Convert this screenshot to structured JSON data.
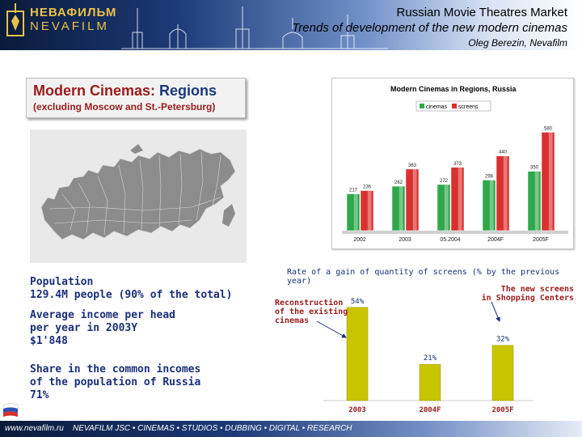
{
  "header": {
    "brand_line1": "НЕВАФИЛЬМ",
    "brand_line2": "NEVAFILM",
    "title": "Russian Movie Theatres Market",
    "subtitle": "Trends of development of the new modern cinemas",
    "author": "Oleg Berezin, Nevafilm"
  },
  "section": {
    "title_part1": "Modern Cinemas:",
    "title_part2": "Regions",
    "subtitle": "(excluding Moscow and St.-Petersburg)"
  },
  "stats": {
    "population_label": "Population",
    "population_value": "129.4M people (90% of the total)",
    "income_line1": "Average income per head",
    "income_line2": "per year in 2003Y",
    "income_value": "$1'848",
    "share_line1": "Share in the common incomes",
    "share_line2": "of the population of Russia",
    "share_value": "71%"
  },
  "chart_data": [
    {
      "type": "bar",
      "title": "Modern Cinemas in Regions, Russia",
      "categories": [
        "2002",
        "2003",
        "05.2004",
        "2004F",
        "2005F"
      ],
      "series": [
        {
          "name": "cinemas",
          "color": "#2ea84a",
          "values": [
            217,
            262,
            272,
            298,
            350
          ]
        },
        {
          "name": "screens",
          "color": "#d9302f",
          "values": [
            236,
            363,
            373,
            440,
            580
          ]
        }
      ],
      "ylim": [
        0,
        620
      ],
      "legend": "top-center",
      "grid": false
    },
    {
      "type": "bar",
      "title": "Rate of a gain of quantity of screens (% by the previous year)",
      "categories": [
        "2003",
        "2004F",
        "2005F"
      ],
      "values": [
        54,
        21,
        32
      ],
      "labels": [
        "54%",
        "21%",
        "32%"
      ],
      "color": "#c9c400",
      "ylim": [
        0,
        60
      ],
      "annotations": [
        "Reconstruction of the existing cinemas",
        "The new screens in Shopping Centers"
      ]
    }
  ],
  "annotations": {
    "left_line1": "Reconstruction",
    "left_line2": "of the existing",
    "left_line3": "cinemas",
    "right_line1": "The new screens",
    "right_line2": "in Shopping Centers"
  },
  "footer": {
    "url": "www.nevafilm.ru",
    "tagline": "NEVAFILM JSC • CINEMAS • STUDIOS • DUBBING • DIGITAL • RESEARCH"
  },
  "colors": {
    "header_dark": "#0a1a3a",
    "brand_gold": "#e8c24a",
    "accent_red": "#9b1a1a",
    "text_blue": "#1a2f7a",
    "bar_gold": "#c9c400"
  }
}
